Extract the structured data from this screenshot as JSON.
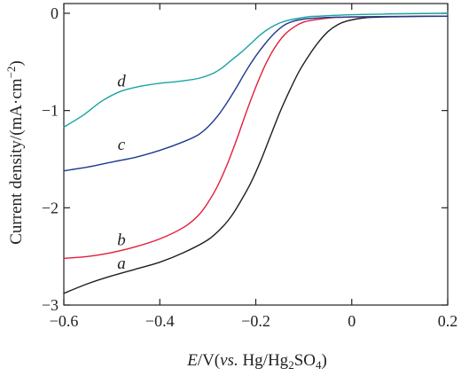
{
  "chart_data": {
    "type": "line",
    "title": "",
    "xlabel_parts": {
      "italic": "E",
      "unit": "/V(",
      "vs": "vs.",
      "ref_a": " Hg/Hg",
      "sub_2": "2",
      "ref_b": "SO",
      "sub_4": "4",
      "close": ")"
    },
    "ylabel_parts": {
      "main": "Current density/(mA·cm",
      "sup": "−2",
      "close": ")"
    },
    "xlim": [
      -0.6,
      0.2
    ],
    "ylim": [
      -3,
      0.1
    ],
    "x_ticks": [
      -0.6,
      -0.4,
      -0.2,
      0,
      0.2
    ],
    "x_tick_labels": [
      "−0.6",
      "−0.4",
      "−0.2",
      "0",
      "0.2"
    ],
    "y_ticks": [
      0,
      -1,
      -2,
      -3
    ],
    "y_tick_labels": [
      "0",
      "−1",
      "−2",
      "−3"
    ],
    "grid": false,
    "legend": "inline labels",
    "series": [
      {
        "name": "a",
        "color": "#1f1f1f",
        "label_at": [
          -0.48,
          -2.57
        ],
        "x": [
          -0.6,
          -0.55,
          -0.5,
          -0.45,
          -0.4,
          -0.35,
          -0.3,
          -0.27,
          -0.25,
          -0.23,
          -0.21,
          -0.19,
          -0.17,
          -0.15,
          -0.13,
          -0.11,
          -0.09,
          -0.07,
          -0.05,
          -0.03,
          -0.01,
          0.02,
          0.05,
          0.1,
          0.15,
          0.2
        ],
        "y": [
          -2.88,
          -2.78,
          -2.7,
          -2.63,
          -2.56,
          -2.46,
          -2.33,
          -2.2,
          -2.08,
          -1.92,
          -1.74,
          -1.52,
          -1.27,
          -1.02,
          -0.8,
          -0.6,
          -0.44,
          -0.3,
          -0.19,
          -0.12,
          -0.08,
          -0.05,
          -0.04,
          -0.035,
          -0.03,
          -0.03
        ]
      },
      {
        "name": "b",
        "color": "#e21e3b",
        "label_at": [
          -0.48,
          -2.33
        ],
        "x": [
          -0.6,
          -0.55,
          -0.5,
          -0.45,
          -0.4,
          -0.35,
          -0.32,
          -0.3,
          -0.28,
          -0.26,
          -0.24,
          -0.22,
          -0.2,
          -0.18,
          -0.16,
          -0.14,
          -0.12,
          -0.1,
          -0.08,
          -0.06,
          -0.04,
          -0.02,
          0,
          0.05,
          0.1,
          0.2
        ],
        "y": [
          -2.52,
          -2.5,
          -2.46,
          -2.4,
          -2.32,
          -2.2,
          -2.08,
          -1.95,
          -1.78,
          -1.56,
          -1.3,
          -1.02,
          -0.76,
          -0.53,
          -0.35,
          -0.22,
          -0.14,
          -0.09,
          -0.07,
          -0.055,
          -0.045,
          -0.04,
          -0.038,
          -0.035,
          -0.033,
          -0.03
        ]
      },
      {
        "name": "c",
        "color": "#1f3a8f",
        "label_at": [
          -0.48,
          -1.35
        ],
        "x": [
          -0.6,
          -0.55,
          -0.5,
          -0.45,
          -0.4,
          -0.35,
          -0.32,
          -0.3,
          -0.28,
          -0.26,
          -0.24,
          -0.22,
          -0.2,
          -0.18,
          -0.16,
          -0.14,
          -0.12,
          -0.1,
          -0.08,
          -0.06,
          -0.04,
          -0.02,
          0,
          0.05,
          0.1,
          0.2
        ],
        "y": [
          -1.62,
          -1.58,
          -1.53,
          -1.48,
          -1.41,
          -1.32,
          -1.25,
          -1.17,
          -1.06,
          -0.92,
          -0.76,
          -0.59,
          -0.44,
          -0.31,
          -0.2,
          -0.12,
          -0.08,
          -0.06,
          -0.05,
          -0.045,
          -0.04,
          -0.04,
          -0.038,
          -0.035,
          -0.033,
          -0.03
        ]
      },
      {
        "name": "d",
        "color": "#18a3a3",
        "label_at": [
          -0.48,
          -0.7
        ],
        "x": [
          -0.6,
          -0.56,
          -0.52,
          -0.48,
          -0.44,
          -0.4,
          -0.36,
          -0.32,
          -0.29,
          -0.27,
          -0.25,
          -0.23,
          -0.21,
          -0.19,
          -0.17,
          -0.15,
          -0.13,
          -0.11,
          -0.09,
          -0.07,
          -0.05,
          -0.03,
          0,
          0.05,
          0.1,
          0.2
        ],
        "y": [
          -1.17,
          -1.05,
          -0.9,
          -0.8,
          -0.75,
          -0.72,
          -0.7,
          -0.67,
          -0.62,
          -0.56,
          -0.48,
          -0.4,
          -0.31,
          -0.22,
          -0.15,
          -0.1,
          -0.07,
          -0.05,
          -0.035,
          -0.03,
          -0.025,
          -0.02,
          -0.015,
          -0.01,
          -0.005,
          0.0
        ]
      }
    ]
  }
}
